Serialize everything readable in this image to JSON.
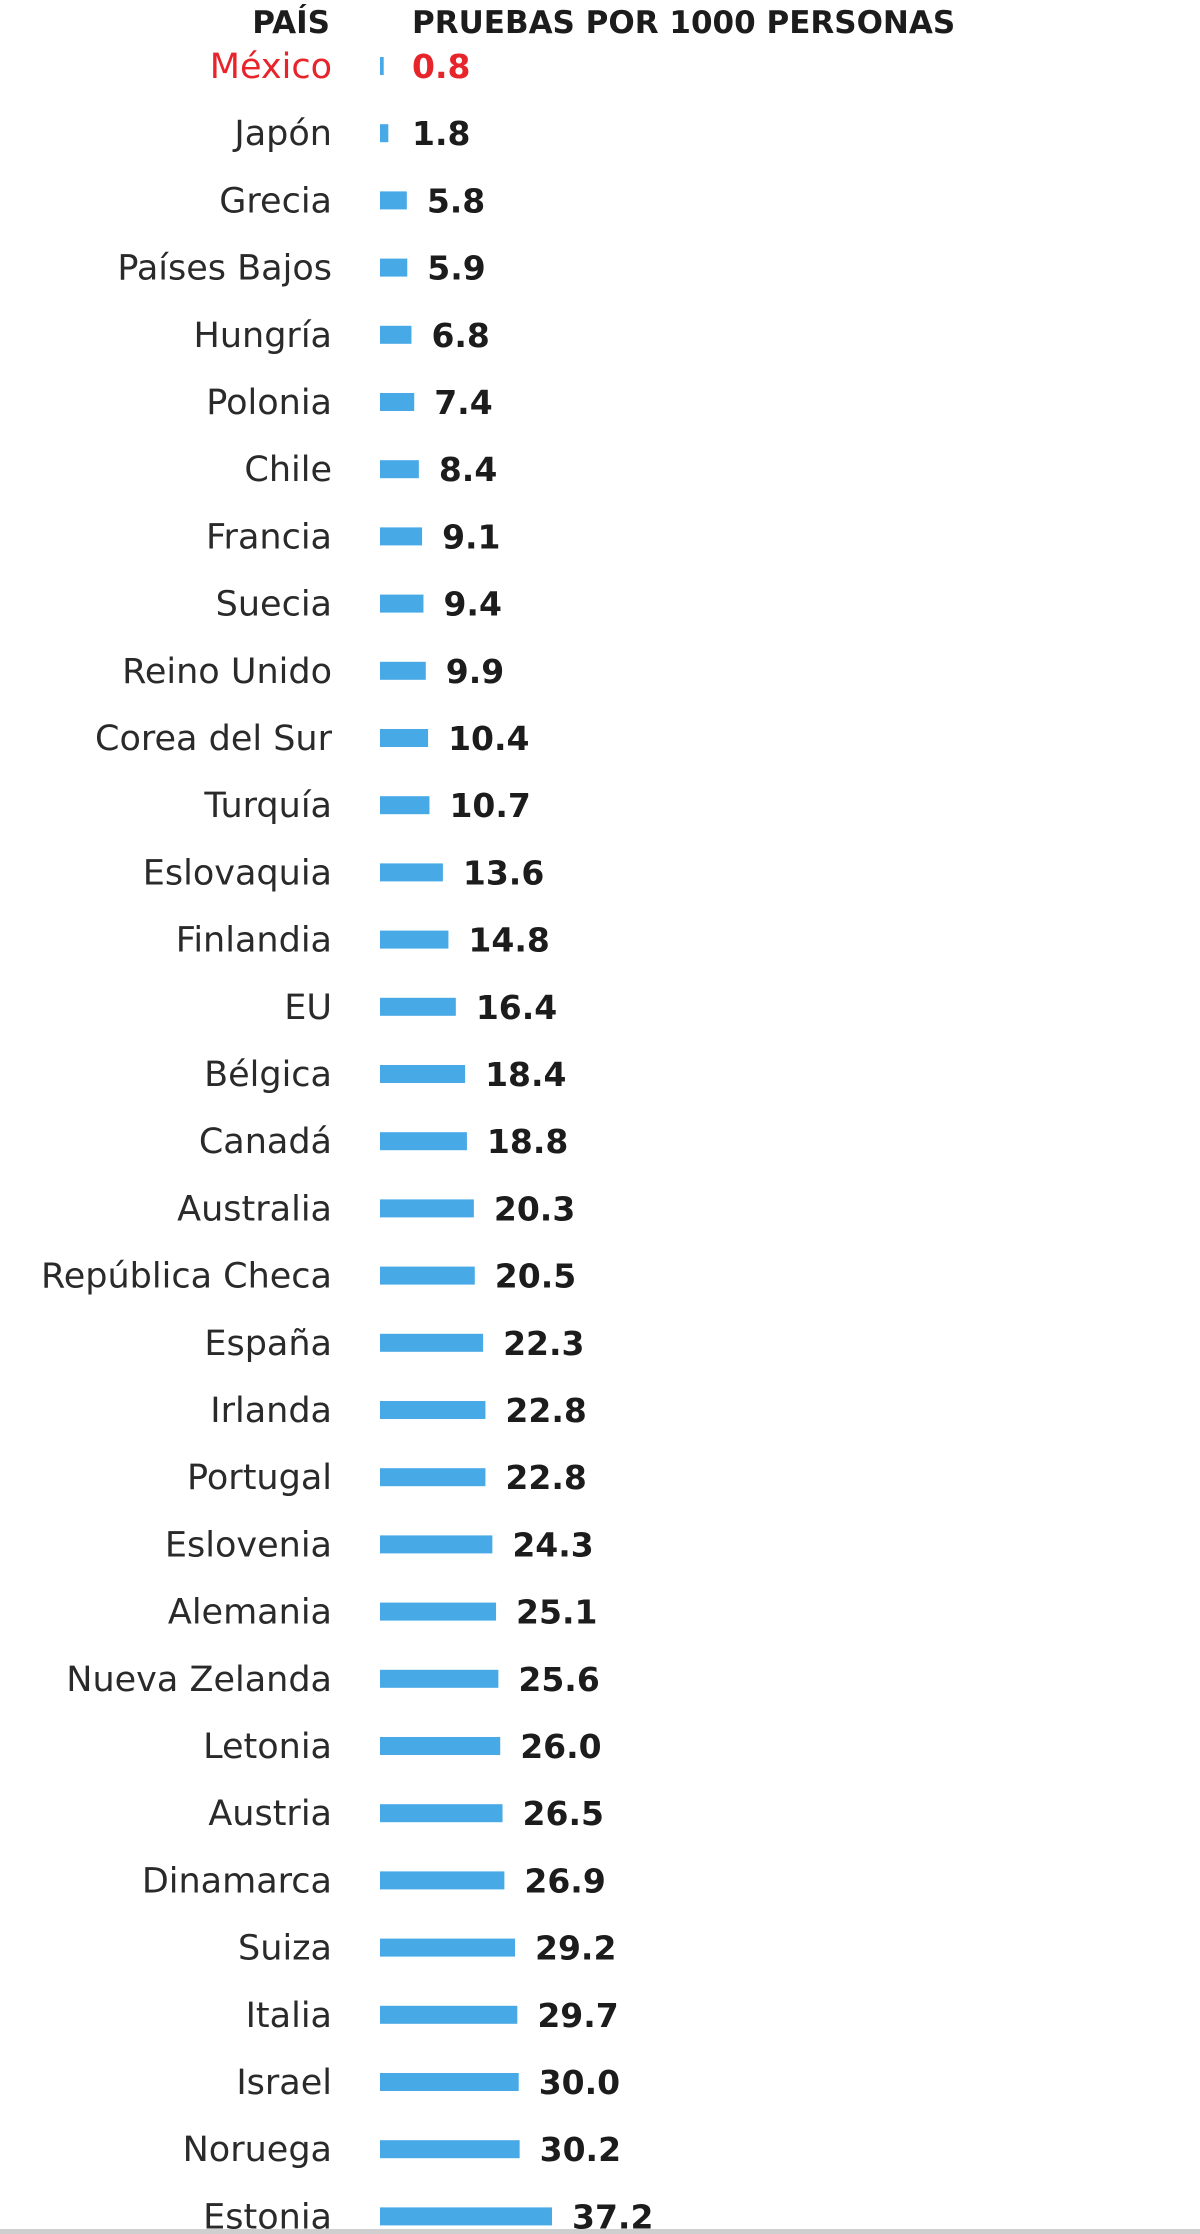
{
  "header": {
    "country_col": "PAÍS",
    "value_col": "PRUEBAS POR 1000 PERSONAS"
  },
  "colors": {
    "bar": "#47a9e6",
    "highlight": "#e8242b",
    "text": "#2a2a2a"
  },
  "chart_data": {
    "type": "bar",
    "orientation": "horizontal",
    "highlight": "México",
    "categories": [
      "México",
      "Japón",
      "Grecia",
      "Países Bajos",
      "Hungría",
      "Polonia",
      "Chile",
      "Francia",
      "Suecia",
      "Reino Unido",
      "Corea del Sur",
      "Turquía",
      "Eslovaquia",
      "Finlandia",
      "EU",
      "Bélgica",
      "Canadá",
      "Australia",
      "República Checa",
      "España",
      "Irlanda",
      "Portugal",
      "Eslovenia",
      "Alemania",
      "Nueva Zelanda",
      "Letonia",
      "Austria",
      "Dinamarca",
      "Suiza",
      "Italia",
      "Israel",
      "Noruega",
      "Estonia"
    ],
    "values": [
      0.8,
      1.8,
      5.8,
      5.9,
      6.8,
      7.4,
      8.4,
      9.1,
      9.4,
      9.9,
      10.4,
      10.7,
      13.6,
      14.8,
      16.4,
      18.4,
      18.8,
      20.3,
      20.5,
      22.3,
      22.8,
      22.8,
      24.3,
      25.1,
      25.6,
      26.0,
      26.5,
      26.9,
      29.2,
      29.7,
      30.0,
      30.2,
      37.2
    ],
    "labels": [
      "0.8",
      "1.8",
      "5.8",
      "5.9",
      "6.8",
      "7.4",
      "8.4",
      "9.1",
      "9.4",
      "9.9",
      "10.4",
      "10.7",
      "13.6",
      "14.8",
      "16.4",
      "18.4",
      "18.8",
      "20.3",
      "20.5",
      "22.3",
      "22.8",
      "22.8",
      "24.3",
      "25.1",
      "25.6",
      "26.0",
      "26.5",
      "26.9",
      "29.2",
      "29.7",
      "30.0",
      "30.2",
      "37.2"
    ],
    "xlim": [
      0,
      37.2
    ],
    "grid": false
  }
}
